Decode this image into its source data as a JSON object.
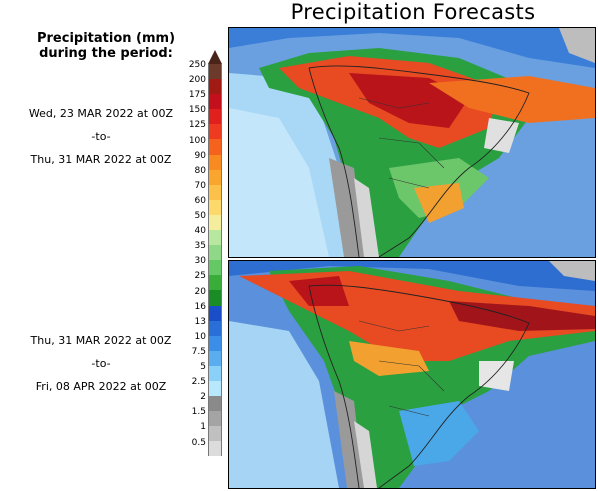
{
  "title": "Precipitation Forecasts",
  "legend": {
    "heading_line1": "Precipitation (mm)",
    "heading_line2": "during the period:",
    "levels": [
      "250",
      "200",
      "175",
      "150",
      "125",
      "100",
      "90",
      "80",
      "70",
      "60",
      "50",
      "40",
      "35",
      "30",
      "25",
      "20",
      "16",
      "13",
      "10",
      "7.5",
      "5",
      "2.5",
      "2",
      "1.5",
      "1",
      "0.5"
    ],
    "colors": [
      "#6b3a2a",
      "#a11a14",
      "#c4101c",
      "#e0201c",
      "#ef3a22",
      "#f5621e",
      "#f88a22",
      "#faa52e",
      "#fcc14a",
      "#fdd86a",
      "#f4ee9c",
      "#b8e8a0",
      "#8ed888",
      "#64c864",
      "#3aac3a",
      "#1a8c26",
      "#1a4ec8",
      "#2a6ed8",
      "#3a8ee8",
      "#5aaef0",
      "#8ad0f8",
      "#b8e8fc",
      "#8a8a8a",
      "#a4a4a4",
      "#c0c0c0",
      "#dcdcdc"
    ]
  },
  "period1": {
    "start": "Wed, 23 MAR 2022 at 00Z",
    "sep": "-to-",
    "end": "Thu, 31 MAR 2022 at 00Z"
  },
  "period2": {
    "start": "Thu, 31 MAR 2022 at 00Z",
    "sep": "-to-",
    "end": "Fri, 08 APR 2022 at 00Z"
  }
}
